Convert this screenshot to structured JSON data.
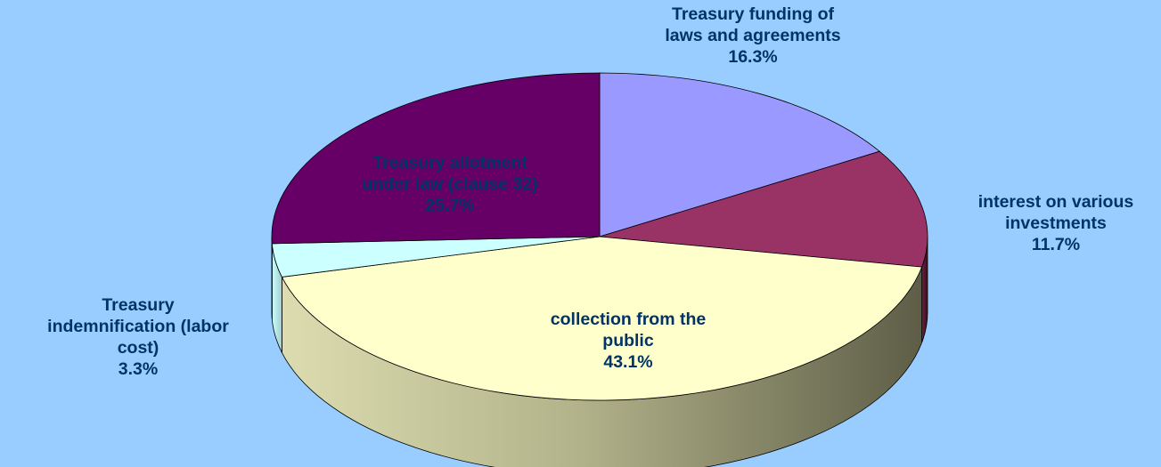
{
  "chart_data": {
    "type": "pie",
    "slices": [
      {
        "label_lines": [
          "Treasury funding of",
          "laws and agreements"
        ],
        "value": 16.3,
        "value_label": "16.3%",
        "color": "#9999FF"
      },
      {
        "label_lines": [
          "interest on various",
          "investments"
        ],
        "value": 11.7,
        "value_label": "11.7%",
        "color": "#993366"
      },
      {
        "label_lines": [
          "collection from the",
          "public"
        ],
        "value": 43.1,
        "value_label": "43.1%",
        "color": "#FFFFCC"
      },
      {
        "label_lines": [
          "Treasury",
          "indemnification (labor",
          "cost)"
        ],
        "value": 3.3,
        "value_label": "3.3%",
        "color": "#CCFFFF"
      },
      {
        "label_lines": [
          "Treasury allotment",
          "under law (clause 32)"
        ],
        "value": 25.7,
        "value_label": "25.7%",
        "color": "#660066"
      }
    ],
    "legend": "none",
    "three_d": true
  },
  "colors": {
    "background": "#99CCFF",
    "label_text": "#003366",
    "outline": "#000000"
  }
}
